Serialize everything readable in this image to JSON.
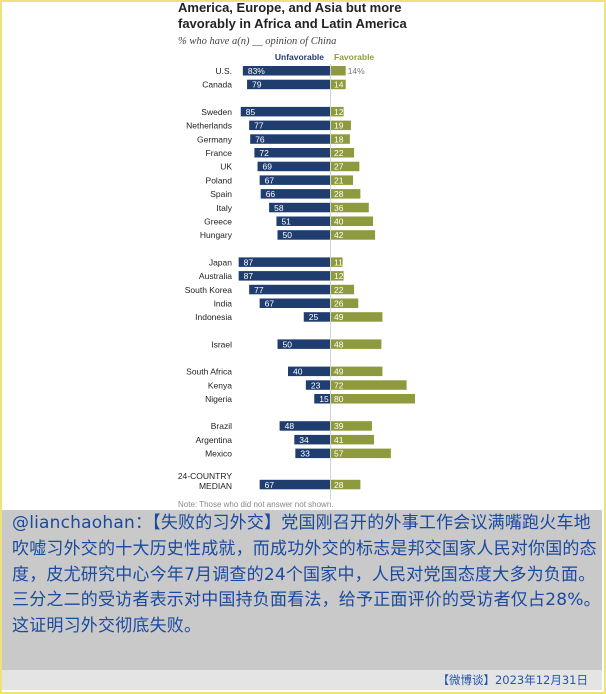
{
  "chart_data": {
    "type": "bar",
    "title_lines": [
      "America, Europe, and Asia but more",
      "favorably in Africa and Latin America"
    ],
    "subtitle": "% who have a(n) __ opinion of China",
    "series": [
      {
        "name": "Unfavorable",
        "color": "#1f3d6e"
      },
      {
        "name": "Favorable",
        "color": "#8f9a3e"
      }
    ],
    "groups": [
      [
        {
          "country": "U.S.",
          "unfavorable": 83,
          "favorable": 14,
          "unfav_label": "83%",
          "fav_label": "14%"
        },
        {
          "country": "Canada",
          "unfavorable": 79,
          "favorable": 14,
          "unfav_label": "79",
          "fav_label": "14"
        }
      ],
      [
        {
          "country": "Sweden",
          "unfavorable": 85,
          "favorable": 12,
          "unfav_label": "85",
          "fav_label": "12"
        },
        {
          "country": "Netherlands",
          "unfavorable": 77,
          "favorable": 19,
          "unfav_label": "77",
          "fav_label": "19"
        },
        {
          "country": "Germany",
          "unfavorable": 76,
          "favorable": 18,
          "unfav_label": "76",
          "fav_label": "18"
        },
        {
          "country": "France",
          "unfavorable": 72,
          "favorable": 22,
          "unfav_label": "72",
          "fav_label": "22"
        },
        {
          "country": "UK",
          "unfavorable": 69,
          "favorable": 27,
          "unfav_label": "69",
          "fav_label": "27"
        },
        {
          "country": "Poland",
          "unfavorable": 67,
          "favorable": 21,
          "unfav_label": "67",
          "fav_label": "21"
        },
        {
          "country": "Spain",
          "unfavorable": 66,
          "favorable": 28,
          "unfav_label": "66",
          "fav_label": "28"
        },
        {
          "country": "Italy",
          "unfavorable": 58,
          "favorable": 36,
          "unfav_label": "58",
          "fav_label": "36"
        },
        {
          "country": "Greece",
          "unfavorable": 51,
          "favorable": 40,
          "unfav_label": "51",
          "fav_label": "40"
        },
        {
          "country": "Hungary",
          "unfavorable": 50,
          "favorable": 42,
          "unfav_label": "50",
          "fav_label": "42"
        }
      ],
      [
        {
          "country": "Japan",
          "unfavorable": 87,
          "favorable": 11,
          "unfav_label": "87",
          "fav_label": "11"
        },
        {
          "country": "Australia",
          "unfavorable": 87,
          "favorable": 12,
          "unfav_label": "87",
          "fav_label": "12"
        },
        {
          "country": "South Korea",
          "unfavorable": 77,
          "favorable": 22,
          "unfav_label": "77",
          "fav_label": "22"
        },
        {
          "country": "India",
          "unfavorable": 67,
          "favorable": 26,
          "unfav_label": "67",
          "fav_label": "26"
        },
        {
          "country": "Indonesia",
          "unfavorable": 25,
          "favorable": 49,
          "unfav_label": "25",
          "fav_label": "49"
        }
      ],
      [
        {
          "country": "Israel",
          "unfavorable": 50,
          "favorable": 48,
          "unfav_label": "50",
          "fav_label": "48"
        }
      ],
      [
        {
          "country": "South Africa",
          "unfavorable": 40,
          "favorable": 49,
          "unfav_label": "40",
          "fav_label": "49"
        },
        {
          "country": "Kenya",
          "unfavorable": 23,
          "favorable": 72,
          "unfav_label": "23",
          "fav_label": "72"
        },
        {
          "country": "Nigeria",
          "unfavorable": 15,
          "favorable": 80,
          "unfav_label": "15",
          "fav_label": "80"
        }
      ],
      [
        {
          "country": "Brazil",
          "unfavorable": 48,
          "favorable": 39,
          "unfav_label": "48",
          "fav_label": "39"
        },
        {
          "country": "Argentina",
          "unfavorable": 34,
          "favorable": 41,
          "unfav_label": "34",
          "fav_label": "41"
        },
        {
          "country": "Mexico",
          "unfavorable": 33,
          "favorable": 57,
          "unfav_label": "33",
          "fav_label": "57"
        }
      ],
      [
        {
          "country": [
            "24-COUNTRY",
            "MEDIAN"
          ],
          "unfavorable": 67,
          "favorable": 28,
          "unfav_label": "67",
          "fav_label": "28",
          "median": true
        }
      ]
    ],
    "note": "Note: Those who did not answer not shown."
  },
  "caption": "@lianchaohan：【失败的习外交】党国刚召开的外事工作会议满嘴跑火车地吹嘘习外交的十大历史性成就，而成功外交的标志是邦交国家人民对你国的态度，皮尤研究中心今年7月调查的24个国家中，人民对党国态度大多为负面。三分之二的受访者表示对中国持负面看法，给予正面评价的受访者仅占28%。这证明习外交彻底失败。",
  "footer": "【微博谈】2023年12月31日"
}
